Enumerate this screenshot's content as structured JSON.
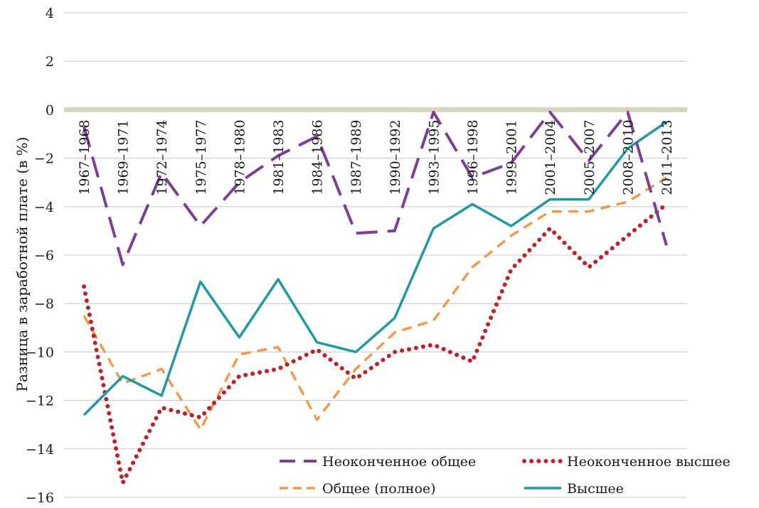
{
  "chart_data": {
    "type": "line",
    "title": "",
    "xlabel": "",
    "ylabel": "Разница в заработной плате (в %)",
    "ylim": [
      -16,
      4
    ],
    "yticks": [
      4,
      2,
      0,
      -2,
      -4,
      -6,
      -8,
      -10,
      -12,
      -14,
      -16
    ],
    "grid": true,
    "legend_position": "bottom-right",
    "categories": [
      "1967–1968",
      "1969–1971",
      "1972–1974",
      "1975–1977",
      "1978–1980",
      "1981–1983",
      "1984–1986",
      "1987–1989",
      "1990–1992",
      "1993–1995",
      "1996–1998",
      "1999–2001",
      "2001–2004",
      "2005–2007",
      "2008–2010",
      "2011–2013"
    ],
    "series": [
      {
        "name": "Неоконченное общее",
        "style": "long-dash",
        "color": "#7b3f98",
        "values": [
          -0.7,
          -6.4,
          -2.6,
          -4.8,
          -3.0,
          -1.9,
          -1.1,
          -5.1,
          -5.0,
          -0.1,
          -2.8,
          -2.2,
          -0.1,
          -2.1,
          -0.1,
          -5.6
        ]
      },
      {
        "name": "Неоконченное высшее",
        "style": "dotted",
        "color": "#c0202a",
        "values": [
          -7.3,
          -15.4,
          -12.3,
          -12.7,
          -11.0,
          -10.7,
          -9.9,
          -11.1,
          -10.0,
          -9.7,
          -10.4,
          -6.6,
          -4.9,
          -6.5,
          -5.2,
          -3.9
        ]
      },
      {
        "name": "Общее (полное)",
        "style": "dash",
        "color": "#f2994a",
        "values": [
          -8.5,
          -11.3,
          -10.7,
          -13.2,
          -10.1,
          -9.8,
          -12.8,
          -10.7,
          -9.2,
          -8.7,
          -6.5,
          -5.2,
          -4.2,
          -4.2,
          -3.8,
          -2.8
        ]
      },
      {
        "name": "Высшее",
        "style": "solid",
        "color": "#1f9aa3",
        "values": [
          -12.6,
          -11.0,
          -11.8,
          -7.1,
          -9.4,
          -7.0,
          -9.6,
          -10.0,
          -8.6,
          -4.9,
          -3.9,
          -4.8,
          -3.7,
          -3.7,
          -1.6,
          -0.5
        ]
      }
    ],
    "zero_line_color": "#d7d6c3",
    "grid_color": "#c8c8c8"
  }
}
